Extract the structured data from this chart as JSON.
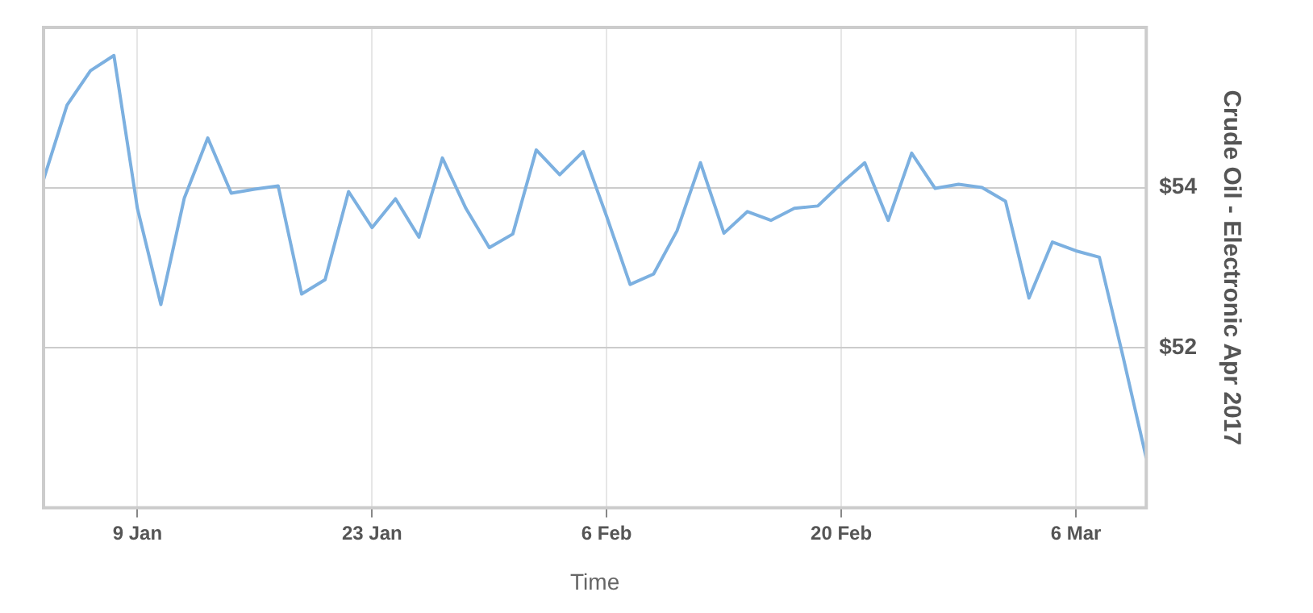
{
  "chart_data": {
    "type": "line",
    "xlabel": "Time",
    "ylabel": "Crude Oil - Electronic Apr 2017",
    "categories": [
      null,
      null,
      null,
      null,
      "9 Jan",
      null,
      null,
      null,
      null,
      null,
      null,
      null,
      null,
      null,
      "23 Jan",
      null,
      null,
      null,
      null,
      null,
      null,
      null,
      null,
      null,
      "6 Feb",
      null,
      null,
      null,
      null,
      null,
      null,
      null,
      null,
      null,
      "20 Feb",
      null,
      null,
      null,
      null,
      null,
      null,
      null,
      null,
      null,
      "6 Mar",
      null,
      null,
      null
    ],
    "series": [
      {
        "color": "#7cb0e0",
        "values": [
          54.1,
          55.03,
          55.46,
          55.65,
          53.74,
          52.54,
          53.87,
          54.62,
          53.93,
          53.98,
          54.02,
          52.67,
          52.85,
          53.95,
          53.5,
          53.86,
          53.38,
          54.37,
          53.74,
          53.25,
          53.42,
          54.47,
          54.16,
          54.45,
          53.64,
          52.79,
          52.92,
          53.46,
          54.31,
          53.43,
          53.7,
          53.59,
          53.74,
          53.77,
          54.05,
          54.31,
          53.59,
          54.43,
          53.99,
          54.04,
          54.0,
          53.83,
          52.62,
          53.32,
          53.21,
          53.13,
          51.9,
          50.62
        ]
      }
    ],
    "ylim": [
      50,
      56
    ],
    "yticks": [
      {
        "value": 52,
        "label": "$52"
      },
      {
        "value": 54,
        "label": "$54"
      }
    ],
    "grid": true,
    "marker": "none"
  }
}
